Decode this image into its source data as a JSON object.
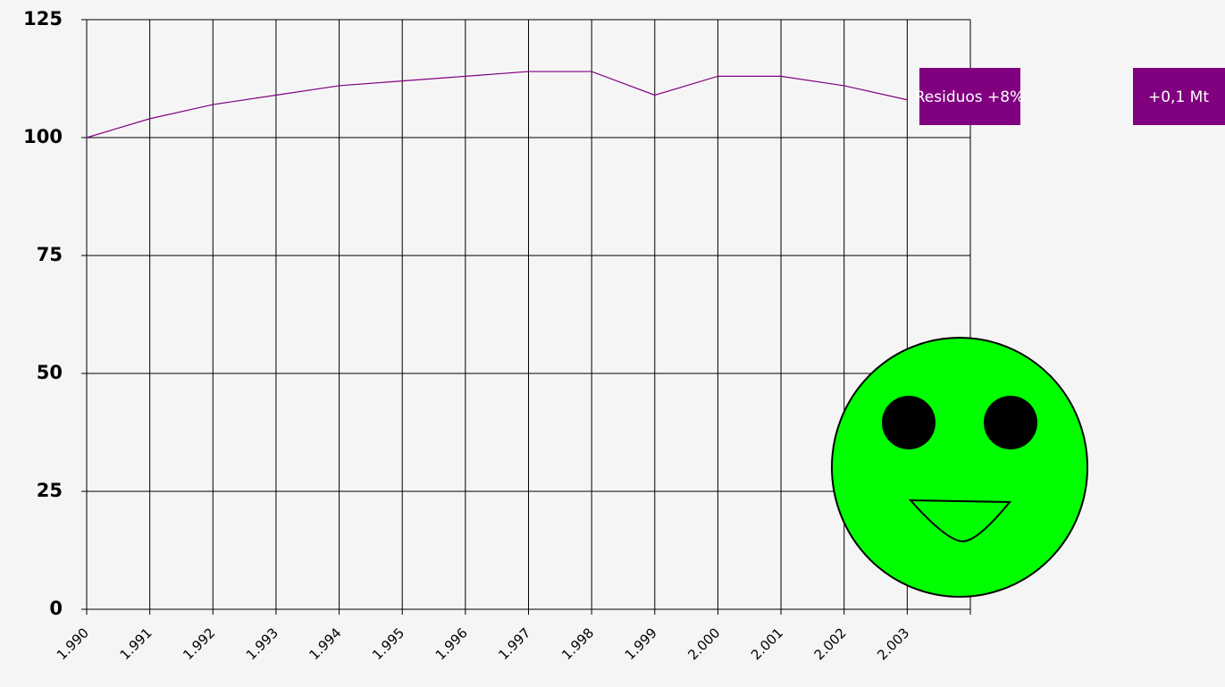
{
  "chart_data": {
    "type": "line",
    "categories": [
      "1.990",
      "1.991",
      "1.992",
      "1.993",
      "1.994",
      "1.995",
      "1.996",
      "1.997",
      "1.998",
      "1.999",
      "2.000",
      "2.001",
      "2.002",
      "2.003"
    ],
    "series": [
      {
        "color": "#800080",
        "values": [
          100,
          104,
          107,
          109,
          111,
          112,
          113,
          114,
          114,
          109,
          113,
          113,
          111,
          108
        ]
      }
    ],
    "ylim": [
      0,
      125
    ],
    "yticks": [
      0,
      25,
      50,
      75,
      100,
      125
    ],
    "grid": true,
    "annotations": [
      "Residuos +8%",
      "+0,1 Mt"
    ]
  }
}
